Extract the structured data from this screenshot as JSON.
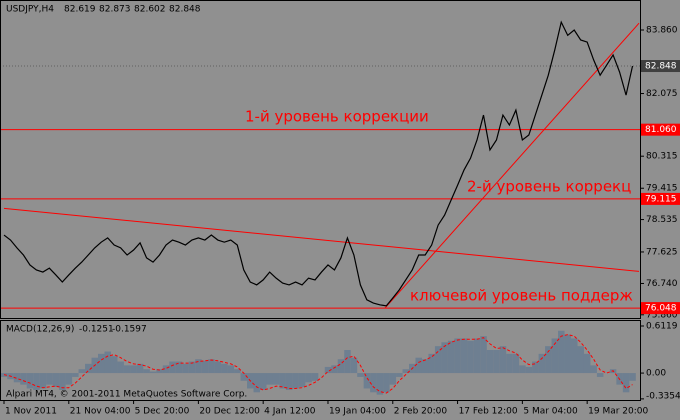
{
  "chart_data": [
    {
      "type": "line",
      "title": "USDJPY,H4",
      "ohlc": [
        82.619,
        82.873,
        82.602,
        82.848
      ],
      "color": "#000000",
      "categories": [
        "1 Nov 2011",
        null,
        null,
        null,
        null,
        null,
        null,
        null,
        null,
        null,
        "21 Nov 04:00",
        null,
        null,
        null,
        null,
        null,
        null,
        null,
        null,
        null,
        "5 Dec 20:00",
        null,
        null,
        null,
        null,
        null,
        null,
        null,
        null,
        null,
        "20 Dec 12:00",
        null,
        null,
        null,
        null,
        null,
        null,
        null,
        null,
        null,
        "4 Jan 12:00",
        null,
        null,
        null,
        null,
        null,
        null,
        null,
        null,
        null,
        "19 Jan 04:00",
        null,
        null,
        null,
        null,
        null,
        null,
        null,
        null,
        null,
        "2 Feb 20:00",
        null,
        null,
        null,
        null,
        null,
        null,
        null,
        null,
        null,
        "17 Feb 12:00",
        null,
        null,
        null,
        null,
        null,
        null,
        null,
        null,
        null,
        "5 Mar 04:00",
        null,
        null,
        null,
        null,
        null,
        null,
        null,
        null,
        null,
        "19 Mar 20:00",
        null,
        null,
        null,
        null,
        null,
        null,
        null
      ],
      "values": [
        78.1,
        77.96,
        77.74,
        77.54,
        77.26,
        77.12,
        77.06,
        77.17,
        76.98,
        76.78,
        76.98,
        77.17,
        77.34,
        77.54,
        77.74,
        77.9,
        78.02,
        77.82,
        77.74,
        77.54,
        77.68,
        77.88,
        77.46,
        77.34,
        77.54,
        77.82,
        77.96,
        77.9,
        77.82,
        77.96,
        78.02,
        77.96,
        78.1,
        77.96,
        77.9,
        77.96,
        77.82,
        77.12,
        76.78,
        76.7,
        76.84,
        77.06,
        76.89,
        76.75,
        76.7,
        76.78,
        76.7,
        76.89,
        76.84,
        77.06,
        77.26,
        77.12,
        77.46,
        78.02,
        77.54,
        76.7,
        76.28,
        76.19,
        76.14,
        76.11,
        76.33,
        76.56,
        76.84,
        77.12,
        77.54,
        77.54,
        77.82,
        78.38,
        78.66,
        79.08,
        79.5,
        79.93,
        80.26,
        80.77,
        81.47,
        80.49,
        80.77,
        81.47,
        81.19,
        81.61,
        80.77,
        80.91,
        81.47,
        82.03,
        82.59,
        83.3,
        84.08,
        83.71,
        83.86,
        83.58,
        83.52,
        83.02,
        82.59,
        82.87,
        83.16,
        82.68,
        82.03,
        82.85
      ],
      "xlim": [
        0,
        98
      ],
      "ylim": [
        75.77,
        84.59
      ],
      "yticks": [
        {
          "value": 83.86,
          "label": "83.860"
        },
        82.075,
        80.315,
        79.415,
        78.535,
        77.625,
        {
          "value": 76.74,
          "label": "76.740"
        },
        {
          "value": 75.86,
          "label": "75.860"
        }
      ],
      "levels": [
        {
          "value": 81.06,
          "label": "81.060"
        },
        {
          "value": 79.115,
          "label": "79.115"
        },
        76.048
      ],
      "level_color": "#ff0000",
      "current_price": 82.848,
      "trendlines": [
        {
          "x": [
            0,
            98
          ],
          "y": [
            78.85,
            77.08
          ]
        },
        {
          "x": [
            58.8,
            98
          ],
          "y": [
            76.05,
            84.05
          ]
        }
      ],
      "annotations": [
        "1-й уровень коррекции",
        "2-й уровень коррекц",
        "ключевой уровень поддерж"
      ]
    },
    {
      "type": "bar",
      "title": "MACD(12,26,9)",
      "readings": [
        -0.1251,
        -0.1597
      ],
      "series": [
        {
          "type": "bar",
          "color": "#6e7f91",
          "values": [
            -0.05,
            -0.08,
            -0.12,
            -0.15,
            -0.2,
            -0.22,
            -0.2,
            -0.15,
            -0.18,
            -0.22,
            -0.15,
            -0.05,
            0.05,
            0.12,
            0.2,
            0.25,
            0.28,
            0.22,
            0.15,
            0.1,
            0.1,
            0.12,
            0.05,
            0.02,
            0.05,
            0.1,
            0.15,
            0.15,
            0.12,
            0.15,
            0.18,
            0.16,
            0.18,
            0.15,
            0.12,
            0.1,
            0.05,
            -0.1,
            -0.2,
            -0.25,
            -0.22,
            -0.15,
            -0.15,
            -0.2,
            -0.22,
            -0.2,
            -0.18,
            -0.12,
            -0.1,
            0.0,
            0.08,
            0.1,
            0.18,
            0.3,
            0.2,
            -0.05,
            -0.2,
            -0.25,
            -0.28,
            -0.25,
            -0.15,
            -0.05,
            0.05,
            0.12,
            0.2,
            0.18,
            0.25,
            0.35,
            0.4,
            0.42,
            0.45,
            0.45,
            0.42,
            0.45,
            0.48,
            0.3,
            0.3,
            0.35,
            0.25,
            0.25,
            0.1,
            0.08,
            0.15,
            0.25,
            0.35,
            0.45,
            0.55,
            0.5,
            0.45,
            0.35,
            0.25,
            0.1,
            -0.05,
            0.0,
            0.05,
            -0.15,
            -0.25,
            -0.1
          ]
        },
        {
          "type": "line",
          "color": "#ff0000",
          "values": [
            -0.02,
            -0.04,
            -0.07,
            -0.1,
            -0.13,
            -0.17,
            -0.19,
            -0.18,
            -0.17,
            -0.19,
            -0.19,
            -0.13,
            -0.05,
            0.03,
            0.1,
            0.17,
            0.22,
            0.24,
            0.2,
            0.15,
            0.12,
            0.11,
            0.09,
            0.05,
            0.04,
            0.06,
            0.1,
            0.13,
            0.13,
            0.13,
            0.15,
            0.16,
            0.17,
            0.16,
            0.14,
            0.12,
            0.08,
            0.0,
            -0.1,
            -0.18,
            -0.22,
            -0.2,
            -0.17,
            -0.18,
            -0.2,
            -0.2,
            -0.19,
            -0.16,
            -0.12,
            -0.06,
            0.02,
            0.07,
            0.12,
            0.2,
            0.22,
            0.1,
            -0.06,
            -0.18,
            -0.24,
            -0.26,
            -0.2,
            -0.1,
            -0.02,
            0.06,
            0.14,
            0.17,
            0.21,
            0.28,
            0.35,
            0.4,
            0.43,
            0.44,
            0.44,
            0.44,
            0.46,
            0.38,
            0.32,
            0.33,
            0.29,
            0.26,
            0.17,
            0.11,
            0.12,
            0.19,
            0.28,
            0.38,
            0.48,
            0.5,
            0.48,
            0.4,
            0.3,
            0.18,
            0.04,
            0.0,
            0.03,
            -0.08,
            -0.2,
            -0.15
          ]
        }
      ],
      "ylim": [
        -0.35,
        0.69
      ],
      "yticks": [
        0.6119,
        {
          "value": 0,
          "label": "0.00"
        },
        -0.3354
      ]
    }
  ],
  "footer": "Alpari MT4, © 2001-2011 MetaQuotes Software Corp."
}
